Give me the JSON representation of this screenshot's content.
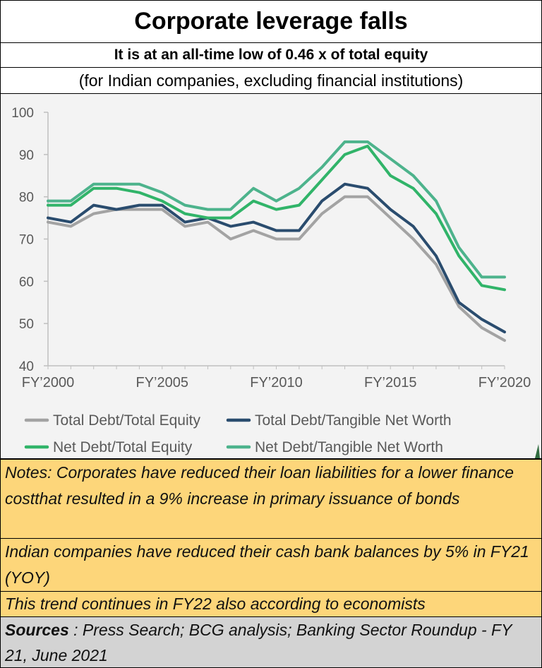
{
  "header": {
    "title": "Corporate leverage falls",
    "subtitle": "It is at an all-time low of 0.46 x  of total equity",
    "subnote": "(for Indian companies, excluding financial institutions)"
  },
  "chart_data": {
    "type": "line",
    "x": [
      2000,
      2001,
      2002,
      2003,
      2004,
      2005,
      2006,
      2007,
      2008,
      2009,
      2010,
      2011,
      2012,
      2013,
      2014,
      2015,
      2016,
      2017,
      2018,
      2019,
      2020
    ],
    "x_tick_labels": [
      "FY’2000",
      "FY’2005",
      "FY’2010",
      "FY’2015",
      "FY’2020"
    ],
    "x_tick_values": [
      2000,
      2005,
      2010,
      2015,
      2020
    ],
    "y_ticks": [
      40,
      50,
      60,
      70,
      80,
      90,
      100
    ],
    "ylim": [
      40,
      100
    ],
    "grid": false,
    "legend_position": "bottom",
    "series": [
      {
        "name": "Total Debt/Total Equity",
        "color": "#a3a3a3",
        "values": [
          74,
          73,
          76,
          77,
          77,
          77,
          73,
          74,
          70,
          72,
          70,
          70,
          76,
          80,
          80,
          75,
          70,
          64,
          54,
          49,
          46
        ]
      },
      {
        "name": "Total Debt/Tangible Net Worth",
        "color": "#2a4c6e",
        "values": [
          75,
          74,
          78,
          77,
          78,
          78,
          74,
          75,
          73,
          74,
          72,
          72,
          79,
          83,
          82,
          77,
          73,
          66,
          55,
          51,
          48
        ]
      },
      {
        "name": "Net Debt/Total Equity",
        "color": "#31b469",
        "values": [
          78,
          78,
          82,
          82,
          81,
          79,
          76,
          75,
          75,
          79,
          77,
          78,
          84,
          90,
          92,
          85,
          82,
          76,
          66,
          59,
          58
        ]
      },
      {
        "name": "Net Debt/Tangible Net Worth",
        "color": "#4db38c",
        "values": [
          79,
          79,
          83,
          83,
          83,
          81,
          78,
          77,
          77,
          82,
          79,
          82,
          87,
          93,
          93,
          89,
          85,
          79,
          68,
          61,
          61
        ]
      }
    ]
  },
  "notes": [
    "Notes:  Corporates have reduced their loan liabilities for a lower finance costthat resulted in a 9% increase in primary issuance of bonds",
    "Indian companies have reduced their cash bank balances by 5% in FY21 (YOY)",
    "This trend continues in FY22 also according to economists"
  ],
  "sources": {
    "label": "Sources",
    "text": " : Press Search; BCG analysis; Banking Sector Roundup - FY 21, June 2021"
  }
}
